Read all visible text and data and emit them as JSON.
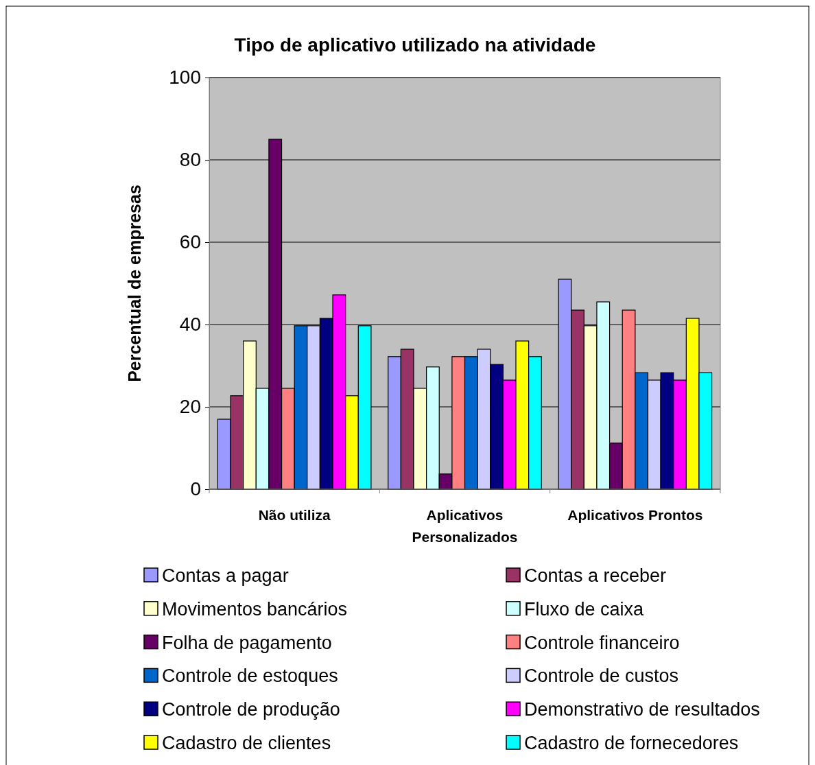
{
  "chart_data": {
    "type": "bar",
    "title": "Tipo de aplicativo utilizado na atividade",
    "ylabel": "Percentual de empresas",
    "categories": [
      "Não utiliza",
      "Aplicativos Personalizados",
      "Aplicativos Prontos"
    ],
    "series": [
      {
        "name": "Contas a pagar",
        "color": "#9999ff",
        "values": [
          17,
          32.2,
          51
        ]
      },
      {
        "name": "Contas a receber",
        "color": "#993366",
        "values": [
          22.7,
          34,
          43.5
        ]
      },
      {
        "name": "Movimentos bancários",
        "color": "#ffffcc",
        "values": [
          36,
          24.5,
          39.7
        ]
      },
      {
        "name": "Fluxo de caixa",
        "color": "#ccffff",
        "values": [
          24.5,
          29.7,
          45.5
        ]
      },
      {
        "name": "Folha de pagamento",
        "color": "#660066",
        "values": [
          85,
          3.7,
          11.2
        ]
      },
      {
        "name": "Controle financeiro",
        "color": "#ff8080",
        "values": [
          24.5,
          32.2,
          43.5
        ]
      },
      {
        "name": "Controle de estoques",
        "color": "#0066cc",
        "values": [
          39.7,
          32.2,
          28.3
        ]
      },
      {
        "name": "Controle de custos",
        "color": "#ccccff",
        "values": [
          39.7,
          34,
          26.5
        ]
      },
      {
        "name": "Controle de produção",
        "color": "#000080",
        "values": [
          41.5,
          30.3,
          28.3
        ]
      },
      {
        "name": "Demonstrativo de resultados",
        "color": "#ff00ff",
        "values": [
          47.2,
          26.5,
          26.5
        ]
      },
      {
        "name": "Cadastro de clientes",
        "color": "#ffff00",
        "values": [
          22.7,
          36,
          41.5
        ]
      },
      {
        "name": "Cadastro de fornecedores",
        "color": "#00ffff",
        "values": [
          39.7,
          32.2,
          28.3
        ]
      }
    ],
    "ylim": [
      0,
      100
    ],
    "yticks": [
      0,
      20,
      40,
      60,
      80,
      100
    ],
    "grid": "y",
    "legend": "bottom"
  }
}
